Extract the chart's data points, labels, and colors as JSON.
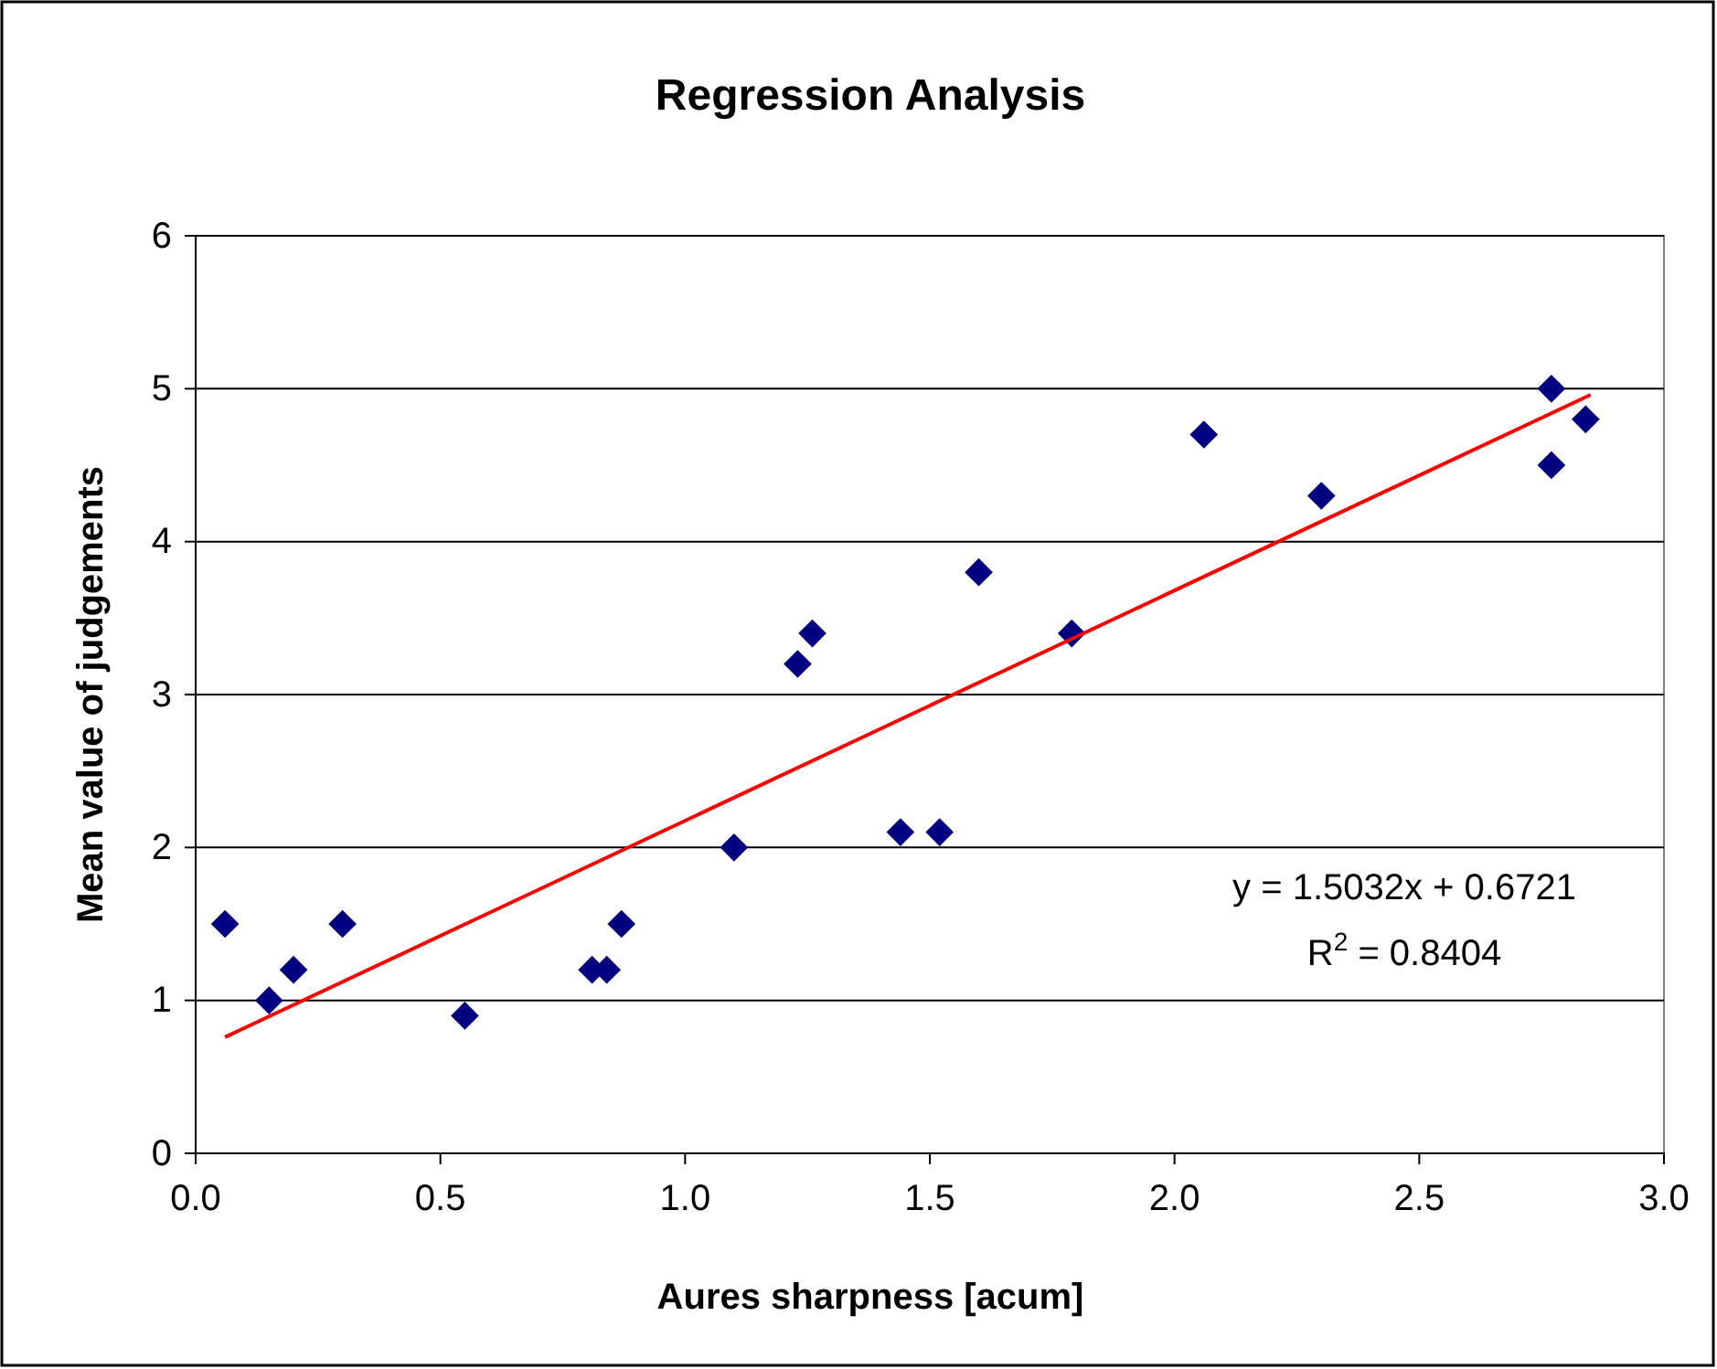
{
  "chart_data": {
    "type": "scatter",
    "title": "Regression Analysis",
    "xlabel": "Aures sharpness [acum]",
    "ylabel": "Mean value of judgements",
    "xlim": [
      0,
      3
    ],
    "xticks": [
      {
        "value": 0,
        "label": "0.0"
      },
      {
        "value": 0.5,
        "label": "0.5"
      },
      {
        "value": 1,
        "label": "1.0"
      },
      {
        "value": 1.5,
        "label": "1.5"
      },
      {
        "value": 2,
        "label": "2.0"
      },
      {
        "value": 2.5,
        "label": "2.5"
      },
      {
        "value": 3,
        "label": "3.0"
      }
    ],
    "ylim": [
      0,
      6
    ],
    "yticks": [
      0,
      1,
      2,
      3,
      4,
      5,
      6
    ],
    "grid": "y",
    "series": [
      {
        "marker": "diamond",
        "color": "#000080",
        "x": [
          0.06,
          0.15,
          0.2,
          0.3,
          0.55,
          0.81,
          0.84,
          0.87,
          1.1,
          1.23,
          1.26,
          1.44,
          1.52,
          1.6,
          1.79,
          2.06,
          2.3,
          2.77,
          2.77,
          2.84
        ],
        "values": [
          1.5,
          1.0,
          1.2,
          1.5,
          0.9,
          1.2,
          1.2,
          1.5,
          2.0,
          3.2,
          3.4,
          2.1,
          2.1,
          3.8,
          3.4,
          4.7,
          4.3,
          5.0,
          4.5,
          4.8
        ]
      },
      {
        "type": "line",
        "marker": "none",
        "color": "#ff0000",
        "line_style": "solid",
        "x": [
          0.06,
          2.85
        ],
        "values": [
          0.76,
          4.96
        ]
      }
    ],
    "annotations": [
      "y = 1.5032x + 0.6721",
      "R$^{2}$ = 0.8404"
    ]
  }
}
